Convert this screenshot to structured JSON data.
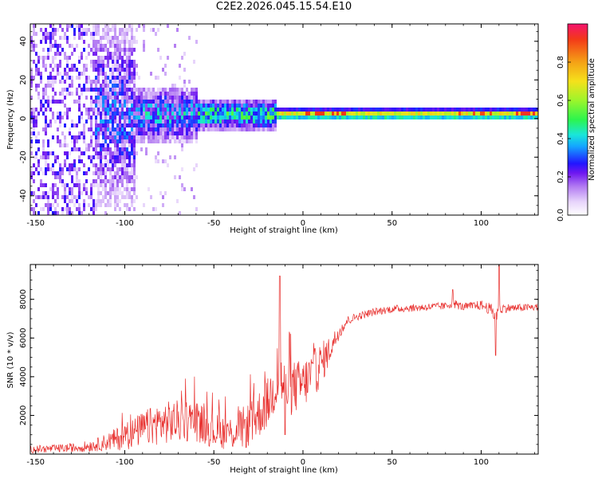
{
  "title": "C2E2.2026.045.15.54.E10",
  "colors": {
    "series": "#e8302e",
    "axis": "#000000",
    "colormap": [
      "#ffffff",
      "#e7d4fb",
      "#b27af2",
      "#6f17f0",
      "#2215ff",
      "#14a6ff",
      "#19e6da",
      "#2df54d",
      "#9df52b",
      "#f5e11b",
      "#f5a116",
      "#f33a18",
      "#f4136e"
    ]
  },
  "chart_data": [
    {
      "type": "heatmap",
      "name": "spectrogram",
      "xlabel": "Height of straight line (km)",
      "ylabel": "Frequency (Hz)",
      "xlim": [
        -153,
        132
      ],
      "ylim": [
        -50,
        49
      ],
      "x_ticks": [
        -150,
        -100,
        -50,
        0,
        50,
        100
      ],
      "x_tick_labels": [
        "-150",
        "-100",
        "-50",
        "0",
        "50",
        "100"
      ],
      "y_ticks": [
        -40,
        -20,
        0,
        20,
        40
      ],
      "y_tick_labels": [
        "-40",
        "-20",
        "0",
        "20",
        "40"
      ],
      "colorbar": {
        "label": "Normalized spectral amplitude",
        "range": [
          0,
          1
        ],
        "ticks": [
          0.0,
          0.2,
          0.4,
          0.6,
          0.8
        ],
        "tick_labels": [
          "0.0",
          "0.2",
          "0.4",
          "0.6",
          "0.8"
        ]
      },
      "description_bands": [
        {
          "x_range": [
            -153,
            -118
          ],
          "freq_spread": 49,
          "intensity": 0.2
        },
        {
          "x_range": [
            -118,
            -60
          ],
          "freq_spread": 8,
          "intensity": 0.35
        },
        {
          "x_range": [
            -60,
            -15
          ],
          "freq_spread": 4,
          "intensity": 0.5
        },
        {
          "x_range": [
            -15,
            132
          ],
          "freq_spread": 2,
          "intensity": 0.75
        }
      ]
    },
    {
      "type": "line",
      "name": "snr",
      "xlabel": "Height of straight line (km)",
      "ylabel": "SNR (10 * v/v)",
      "xlim": [
        -153,
        132
      ],
      "ylim": [
        0,
        9800
      ],
      "x_ticks": [
        -150,
        -100,
        -50,
        0,
        50,
        100
      ],
      "x_tick_labels": [
        "-150",
        "-100",
        "-50",
        "0",
        "50",
        "100"
      ],
      "y_ticks": [
        2000,
        4000,
        6000,
        8000
      ],
      "y_tick_labels": [
        "2000",
        "4000",
        "6000",
        "8000"
      ],
      "x": [
        -153,
        -140,
        -125,
        -115,
        -100,
        -90,
        -80,
        -70,
        -60,
        -50,
        -40,
        -30,
        -20,
        -13,
        -10,
        0,
        10,
        15,
        20,
        25,
        30,
        40,
        50,
        60,
        70,
        80,
        84,
        90,
        100,
        105,
        108,
        112,
        120,
        132
      ],
      "y": [
        250,
        280,
        350,
        500,
        900,
        1300,
        1600,
        1700,
        1750,
        1200,
        1100,
        1500,
        2600,
        4000,
        3300,
        3600,
        4600,
        5400,
        6300,
        6900,
        7100,
        7350,
        7500,
        7550,
        7600,
        7650,
        7800,
        7600,
        7700,
        7500,
        7200,
        7550,
        7550,
        7600
      ],
      "noise": [
        200,
        200,
        250,
        350,
        700,
        900,
        1100,
        1100,
        1100,
        900,
        900,
        1200,
        1300,
        1400,
        1500,
        1300,
        1200,
        700,
        400,
        250,
        200,
        200,
        200,
        200,
        200,
        200,
        250,
        200,
        250,
        300,
        500,
        250,
        200,
        200
      ],
      "spikes": [
        {
          "x": -13,
          "y": 9200
        },
        {
          "x": -10,
          "y": 1000
        },
        {
          "x": 84,
          "y": 8500
        },
        {
          "x": 108,
          "y": 5100
        },
        {
          "x": 110,
          "y": 9800
        }
      ]
    }
  ]
}
